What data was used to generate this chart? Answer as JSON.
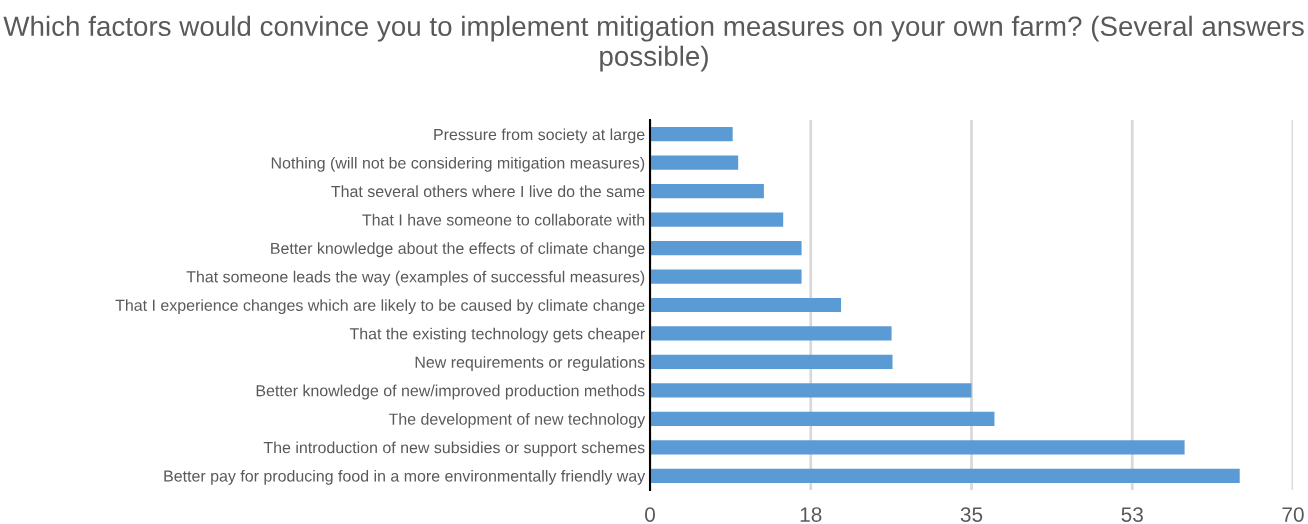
{
  "chart_data": {
    "type": "bar",
    "orientation": "horizontal",
    "title": "Which factors would convince you to implement mitigation measures on your own farm? (Several answers possible)",
    "categories": [
      "Pressure from society at large",
      "Nothing (will not be considering mitigation measures)",
      "That several others where I live do the same",
      "That I have someone to collaborate with",
      "Better knowledge about the effects of climate change",
      "That someone leads the way (examples of successful measures)",
      "That I experience changes which are likely to be caused by climate change",
      "That the existing technology gets cheaper",
      "New requirements or regulations",
      "Better knowledge of new/improved production methods",
      "The development of new technology",
      "The introduction of new subsidies or support schemes",
      "Better pay for producing food in a more environmentally friendly way"
    ],
    "values": [
      9.0,
      9.6,
      12.4,
      14.5,
      16.5,
      16.5,
      20.8,
      26.3,
      26.4,
      35.0,
      37.5,
      58.2,
      64.2
    ],
    "color": "#5b9bd5",
    "xlim": [
      0,
      70
    ],
    "xticks": [
      0,
      {
        "value": 17.5,
        "label": "18"
      },
      35,
      {
        "value": 52.5,
        "label": "53"
      },
      70
    ],
    "grid": "x"
  }
}
